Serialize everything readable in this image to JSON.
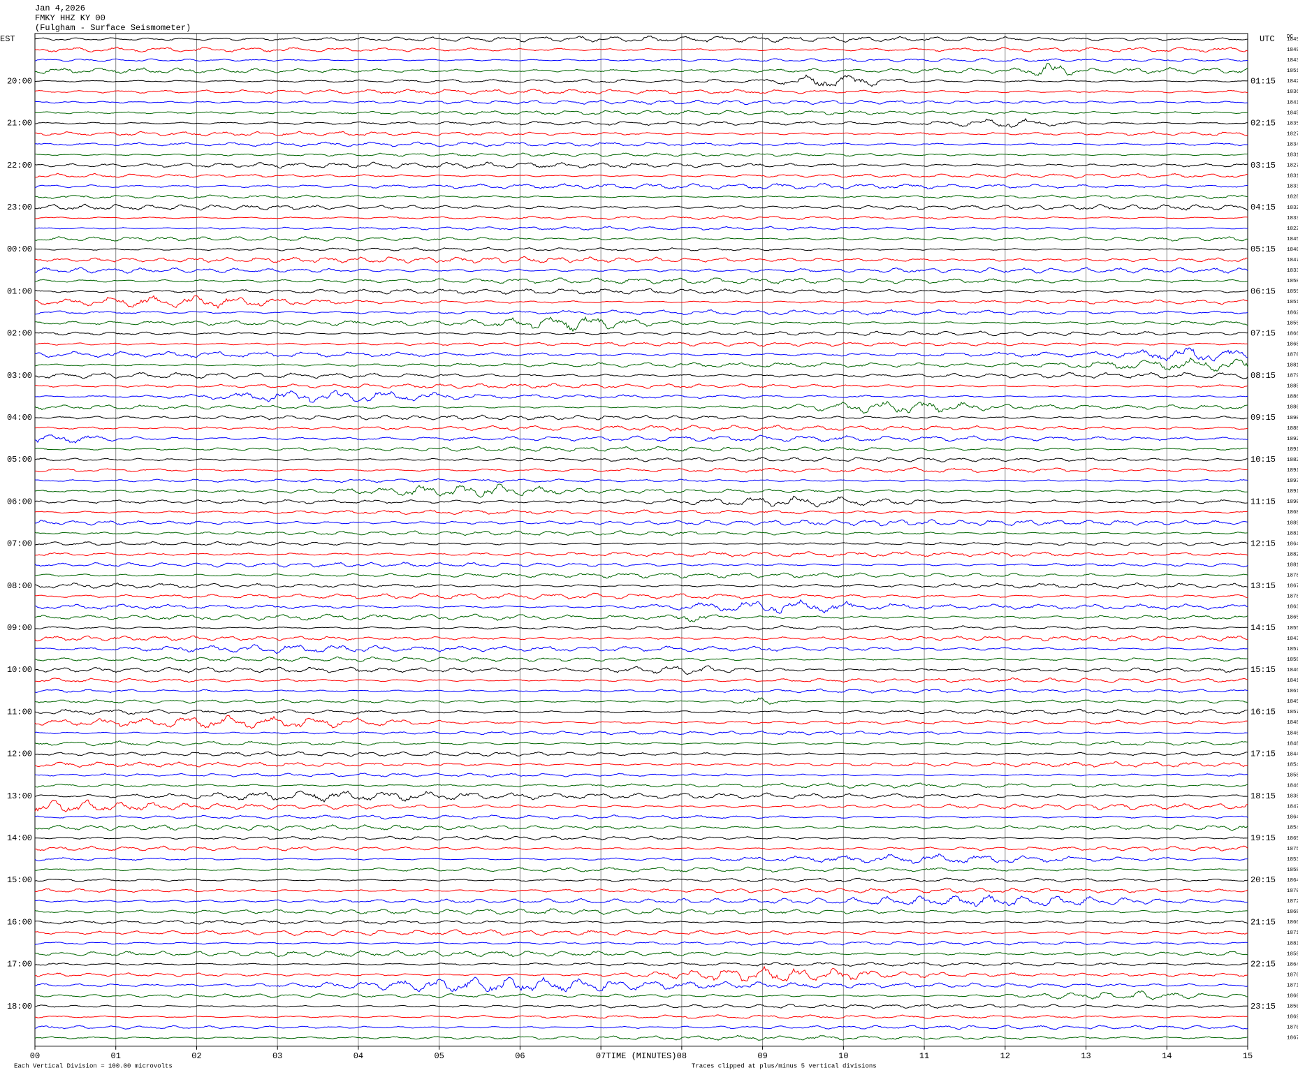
{
  "header": {
    "date": "Jan 4,2026",
    "station": "FMKY HHZ KY 00",
    "description": "(Fulgham - Surface Seismometer)"
  },
  "left_zone": "EST",
  "right_zone": "UTC",
  "dc_label": "DC",
  "est_hours": [
    "20:00",
    "21:00",
    "22:00",
    "23:00",
    "00:00",
    "01:00",
    "02:00",
    "03:00",
    "04:00",
    "05:00",
    "06:00",
    "07:00",
    "08:00",
    "09:00",
    "10:00",
    "11:00",
    "12:00",
    "13:00",
    "14:00",
    "15:00",
    "16:00",
    "17:00",
    "18:00"
  ],
  "utc_hours": [
    "01:15",
    "02:15",
    "03:15",
    "04:15",
    "05:15",
    "06:15",
    "07:15",
    "08:15",
    "09:15",
    "10:15",
    "11:15",
    "12:15",
    "13:15",
    "14:15",
    "15:15",
    "16:15",
    "17:15",
    "18:15",
    "19:15",
    "20:15",
    "21:15",
    "22:15",
    "23:15"
  ],
  "trace_dc": [
    "1849",
    "1849",
    "1843",
    "1851",
    "1842",
    "1836",
    "1841",
    "1845",
    "1835",
    "1827",
    "1834",
    "1831",
    "1827",
    "1831",
    "1833",
    "1828",
    "1832",
    "1833",
    "1822",
    "1845",
    "1840",
    "1847",
    "1833",
    "1850",
    "1859",
    "1851",
    "1862",
    "1855",
    "1866",
    "1868",
    "1870",
    "1881",
    "1879",
    "1885",
    "1886",
    "1886",
    "1890",
    "1888",
    "1892",
    "1891",
    "1882",
    "1891",
    "1893",
    "1891",
    "1890",
    "1868",
    "1889",
    "1881",
    "1864",
    "1882",
    "1881",
    "1878",
    "1867",
    "1878",
    "1863",
    "1865",
    "1855",
    "1843",
    "1857",
    "1858",
    "1846",
    "1841",
    "1861",
    "1849",
    "1857",
    "1848",
    "1846",
    "1848",
    "1844",
    "1854",
    "1858",
    "1846",
    "1838",
    "1847",
    "1864",
    "1854",
    "1865",
    "1875",
    "1853",
    "1858",
    "1864",
    "1870",
    "1872",
    "1868",
    "1866",
    "1871",
    "1881",
    "1858",
    "1864",
    "1876",
    "1871",
    "1860",
    "1850",
    "1869",
    "1870",
    "1867"
  ],
  "trace_colors": [
    "#000000",
    "#ff0000",
    "#0000ff",
    "#006400"
  ],
  "x_axis": {
    "label": "TIME (MINUTES)",
    "ticks": [
      "00",
      "01",
      "02",
      "03",
      "04",
      "05",
      "06",
      "07",
      "08",
      "09",
      "10",
      "11",
      "12",
      "13",
      "14",
      "15"
    ]
  },
  "footer": {
    "scale": "Each Vertical Division =  100.00 microvolts",
    "clip": "Traces clipped at plus/minus 5 vertical divisions"
  }
}
